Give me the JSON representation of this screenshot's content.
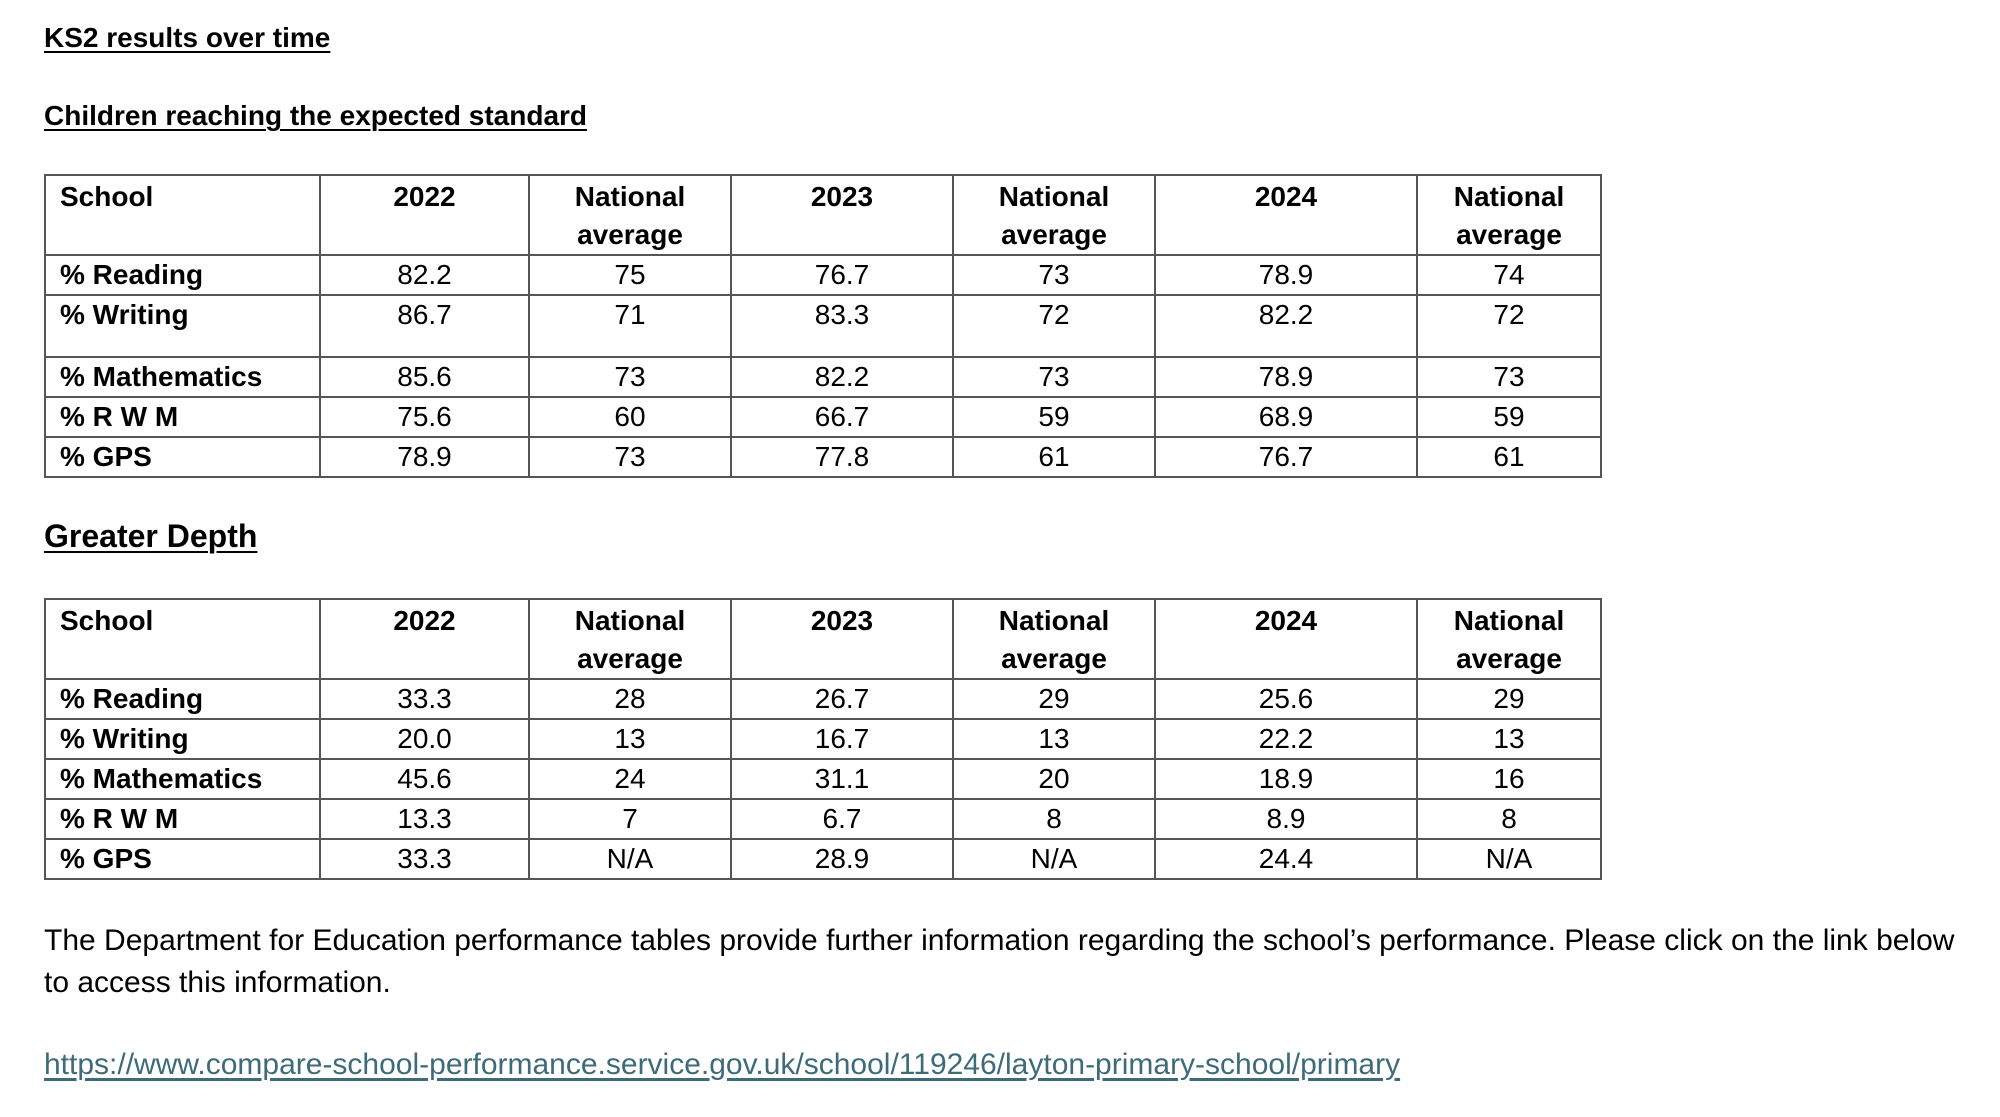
{
  "document": {
    "title": "KS2 results over time",
    "section1_heading": "Children reaching the expected standard",
    "section2_heading": "Greater Depth",
    "paragraph": "The Department for Education performance tables provide further information regarding the school’s performance. Please click on the link below to access this information.",
    "link_text": "https://www.compare-school-performance.service.gov.uk/school/119246/layton-primary-school/primary"
  },
  "expected_table": {
    "headers": [
      "School",
      "2022",
      "National average",
      "2023",
      "National average",
      "2024",
      "National average"
    ],
    "rows": [
      {
        "label": "% Reading",
        "values": [
          "82.2",
          "75",
          "76.7",
          "73",
          "78.9",
          "74"
        ]
      },
      {
        "label": "% Writing",
        "values": [
          "86.7",
          "71",
          "83.3",
          "72",
          "82.2",
          "72"
        ]
      },
      {
        "label": "% Mathematics",
        "values": [
          "85.6",
          "73",
          "82.2",
          "73",
          "78.9",
          "73"
        ]
      },
      {
        "label": "% R W M",
        "values": [
          "75.6",
          "60",
          "66.7",
          "59",
          "68.9",
          "59"
        ]
      },
      {
        "label": "% GPS",
        "values": [
          "78.9",
          "73",
          "77.8",
          "61",
          "76.7",
          "61"
        ]
      }
    ]
  },
  "depth_table": {
    "headers": [
      "School",
      "2022",
      "National average",
      "2023",
      "National average",
      "2024",
      "National average"
    ],
    "rows": [
      {
        "label": "% Reading",
        "values": [
          "33.3",
          "28",
          "26.7",
          "29",
          "25.6",
          "29"
        ]
      },
      {
        "label": "% Writing",
        "values": [
          "20.0",
          "13",
          "16.7",
          "13",
          "22.2",
          "13"
        ]
      },
      {
        "label": "% Mathematics",
        "values": [
          "45.6",
          "24",
          "31.1",
          "20",
          "18.9",
          "16"
        ]
      },
      {
        "label": "% R W M",
        "values": [
          "13.3",
          "7",
          "6.7",
          "8",
          "8.9",
          "8"
        ]
      },
      {
        "label": "% GPS",
        "values": [
          "33.3",
          "N/A",
          "28.9",
          "N/A",
          "24.4",
          "N/A"
        ]
      }
    ]
  },
  "colors": {
    "text": "#000000",
    "link": "#3d6b7a",
    "table_border": "#555555",
    "background": "#ffffff"
  }
}
